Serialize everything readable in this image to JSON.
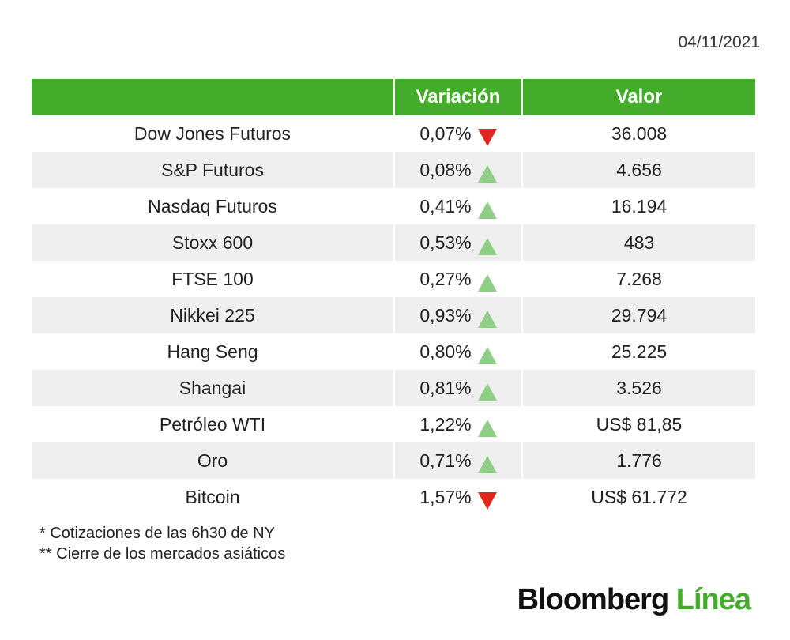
{
  "date": "04/11/2021",
  "table": {
    "headers": {
      "name": "",
      "variation": "Variación",
      "value": "Valor"
    },
    "rows": [
      {
        "name": "Dow Jones Futuros",
        "variation": "0,07%",
        "direction": "down",
        "value": "36.008"
      },
      {
        "name": "S&P Futuros",
        "variation": "0,08%",
        "direction": "up",
        "value": "4.656"
      },
      {
        "name": "Nasdaq Futuros",
        "variation": "0,41%",
        "direction": "up",
        "value": "16.194"
      },
      {
        "name": "Stoxx 600",
        "variation": "0,53%",
        "direction": "up",
        "value": "483"
      },
      {
        "name": "FTSE 100",
        "variation": "0,27%",
        "direction": "up",
        "value": "7.268"
      },
      {
        "name": "Nikkei 225",
        "variation": "0,93%",
        "direction": "up",
        "value": "29.794"
      },
      {
        "name": "Hang Seng",
        "variation": "0,80%",
        "direction": "up",
        "value": "25.225"
      },
      {
        "name": "Shangai",
        "variation": "0,81%",
        "direction": "up",
        "value": "3.526"
      },
      {
        "name": "Petróleo WTI",
        "variation": "1,22%",
        "direction": "up",
        "value": "US$ 81,85"
      },
      {
        "name": "Oro",
        "variation": "0,71%",
        "direction": "up",
        "value": "1.776"
      },
      {
        "name": "Bitcoin",
        "variation": "1,57%",
        "direction": "down",
        "value": "US$ 61.772"
      }
    ]
  },
  "notes": [
    "* Cotizaciones de las 6h30 de NY",
    "** Cierre de los mercados asiáticos"
  ],
  "logo": {
    "brand": "Bloomberg",
    "suffix": "Línea"
  },
  "colors": {
    "header": "#43ad2b",
    "up": "#8fce85",
    "down": "#e1261c",
    "alt_row": "#efefef"
  }
}
